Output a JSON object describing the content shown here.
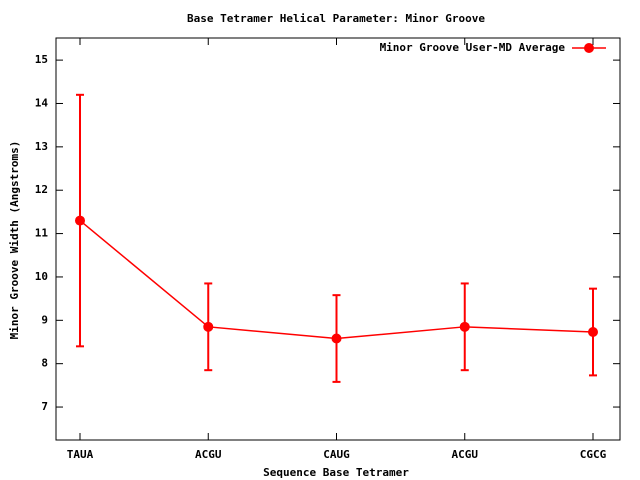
{
  "chart_data": {
    "type": "line",
    "title": "Base Tetramer Helical Parameter: Minor Groove",
    "x_label": "Sequence Base Tetramer",
    "y_label": "Minor Groove Width (Angstroms)",
    "categories": [
      "TAUA",
      "ACGU",
      "CAUG",
      "ACGU",
      "CGCG"
    ],
    "series": [
      {
        "name": "Minor Groove User-MD Average",
        "color": "#ff0000",
        "values": [
          11.3,
          8.85,
          8.58,
          8.85,
          8.73
        ],
        "errors": [
          2.9,
          1.0,
          1.0,
          1.0,
          1.0
        ]
      }
    ],
    "ylim": [
      6.24,
      15.51
    ],
    "yticks": [
      7,
      8,
      9,
      10,
      11,
      12,
      13,
      14,
      15
    ],
    "legend": "top-right"
  }
}
